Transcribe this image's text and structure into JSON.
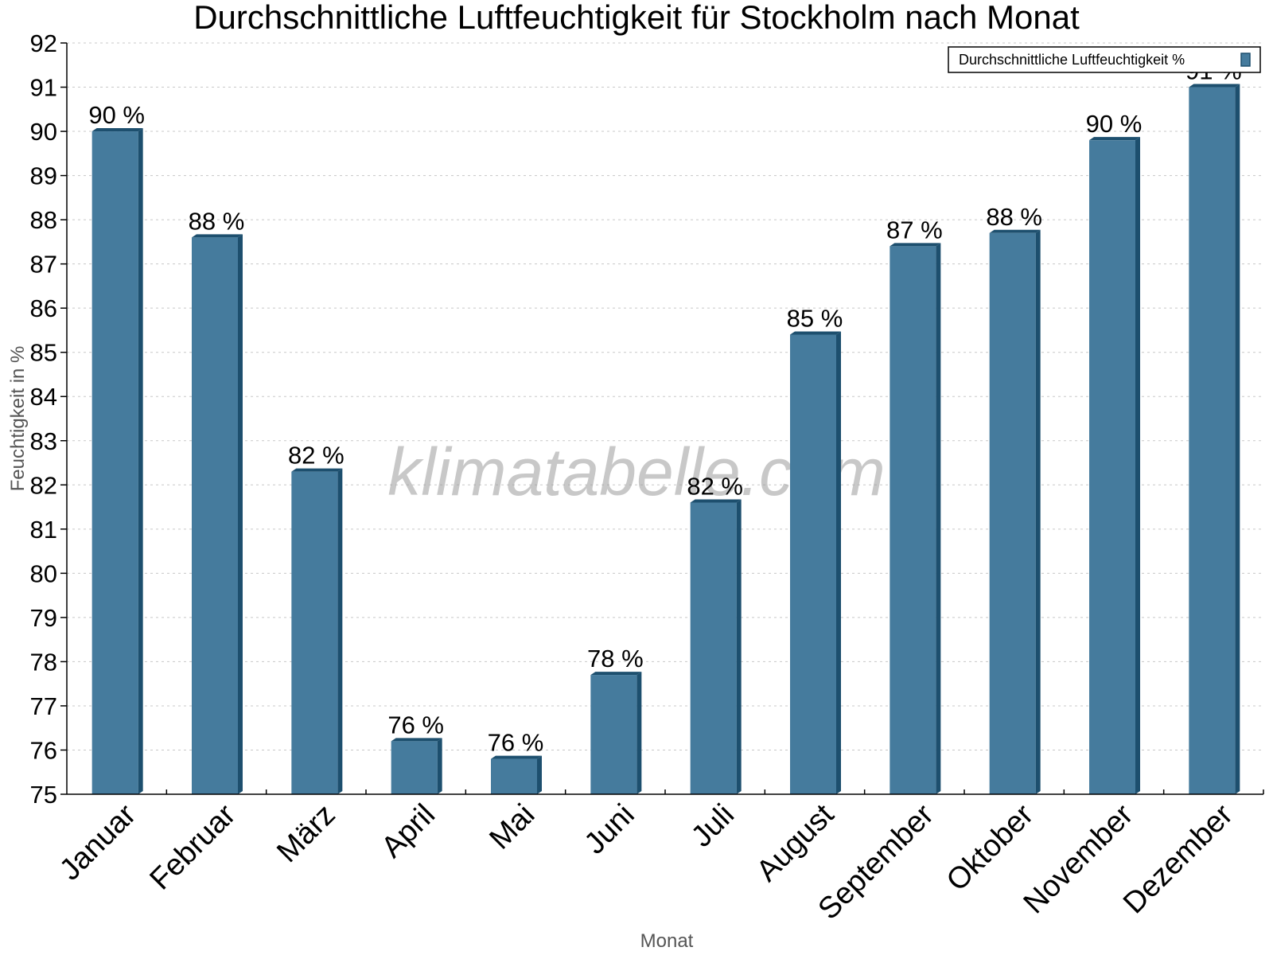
{
  "chart_data": {
    "type": "bar",
    "title": "Durchschnittliche Luftfeuchtigkeit für Stockholm nach Monat",
    "xlabel": "Monat",
    "ylabel": "Feuchtigkeit in %",
    "ylim": [
      75,
      92
    ],
    "yticks": [
      75,
      76,
      77,
      78,
      79,
      80,
      81,
      82,
      83,
      84,
      85,
      86,
      87,
      88,
      89,
      90,
      91,
      92
    ],
    "grid": true,
    "legend_position": "top-right",
    "categories": [
      "Januar",
      "Februar",
      "März",
      "April",
      "Mai",
      "Juni",
      "Juli",
      "August",
      "September",
      "Oktober",
      "November",
      "Dezember"
    ],
    "series": [
      {
        "name": "Durchschnittliche Luftfeuchtigkeit %",
        "values": [
          90.0,
          87.6,
          82.3,
          76.2,
          75.8,
          77.7,
          81.6,
          85.4,
          87.4,
          87.7,
          89.8,
          91.0
        ],
        "labels": [
          "90 %",
          "88 %",
          "82 %",
          "76 %",
          "76 %",
          "78 %",
          "82 %",
          "85 %",
          "87 %",
          "88 %",
          "90 %",
          "91 %"
        ],
        "color": "#457b9d",
        "edge_color": "#1d4f6e"
      }
    ],
    "watermark": "klimatabelle.com"
  }
}
